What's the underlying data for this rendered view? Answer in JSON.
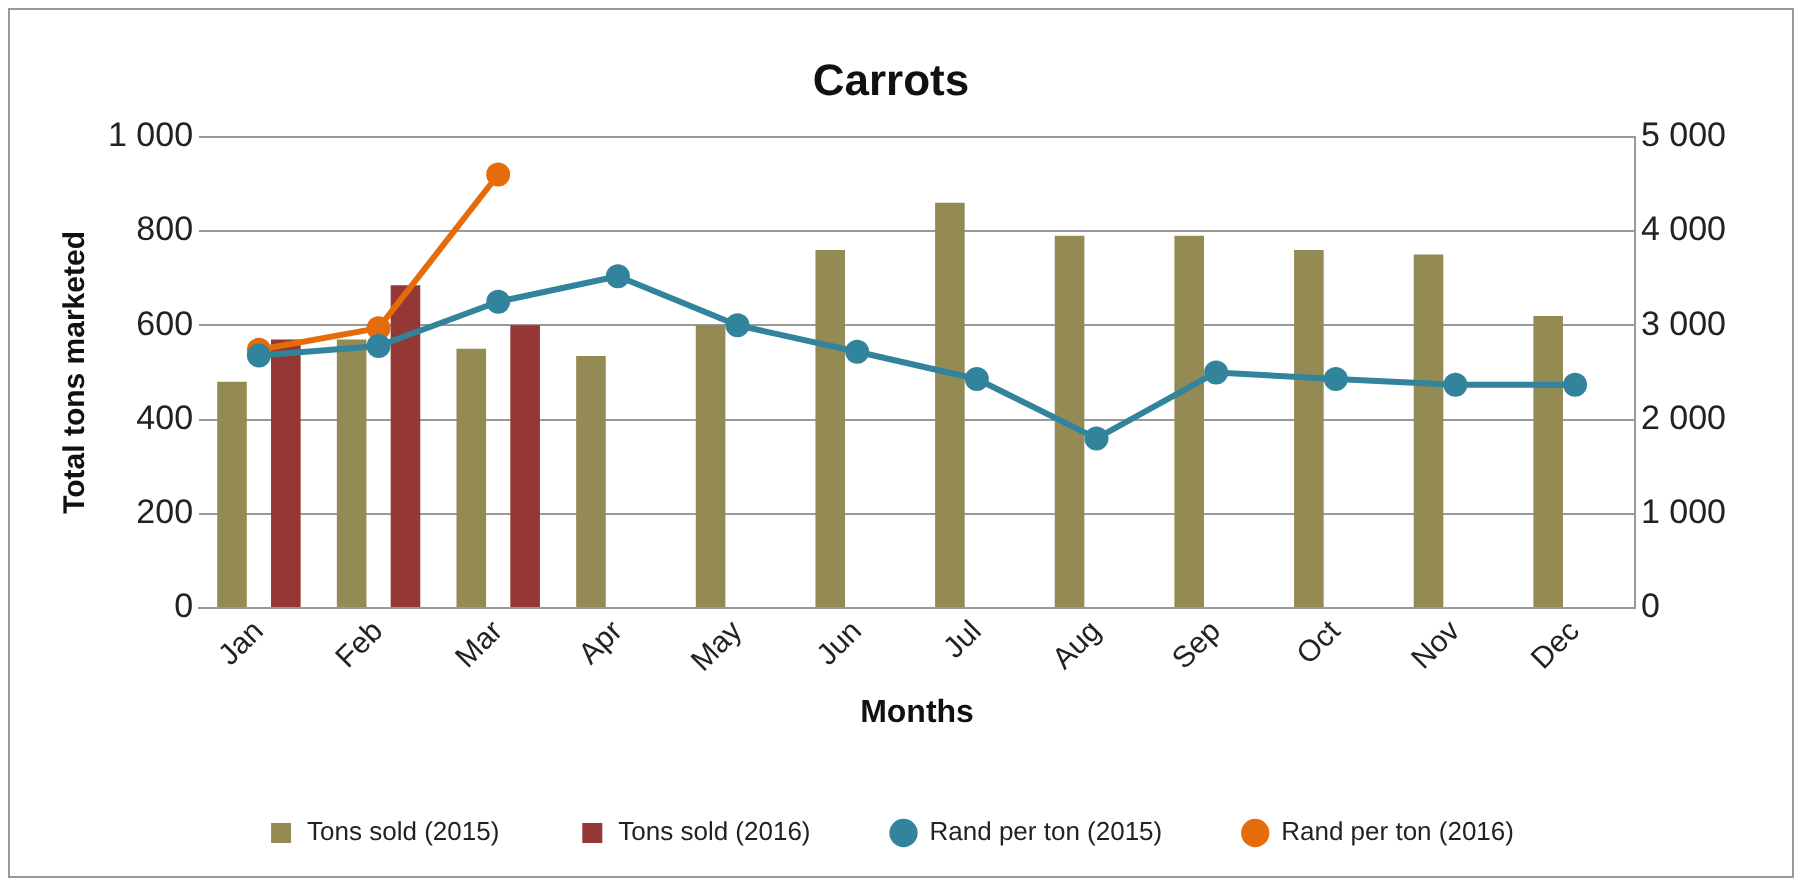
{
  "chart_data": {
    "type": "bar",
    "title": "Carrots",
    "xlabel": "Months",
    "ylabel": "Total tons marketed",
    "categories": [
      "Jan",
      "Feb",
      "Mar",
      "Apr",
      "May",
      "Jun",
      "Jul",
      "Aug",
      "Sep",
      "Oct",
      "Nov",
      "Dec"
    ],
    "series": [
      {
        "name": "Tons sold (2015)",
        "color": "#948a54",
        "values": [
          480,
          570,
          550,
          535,
          600,
          760,
          860,
          790,
          790,
          760,
          750,
          620
        ]
      },
      {
        "name": "Tons sold (2016)",
        "color": "#953735",
        "values": [
          570,
          685,
          600,
          null,
          null,
          null,
          null,
          null,
          null,
          null,
          null,
          null
        ]
      },
      {
        "name": "Rand per ton (2015)",
        "type": "line",
        "axis": "y2",
        "color": "#31849b",
        "marker": "circle",
        "values": [
          2680,
          2780,
          3250,
          3520,
          3000,
          2720,
          2430,
          1800,
          2500,
          2430,
          2370,
          2370
        ]
      },
      {
        "name": "Rand per ton (2016)",
        "type": "line",
        "axis": "y2",
        "color": "#e46c0a",
        "marker": "circle",
        "values": [
          2740,
          2970,
          4600,
          null,
          null,
          null,
          null,
          null,
          null,
          null,
          null,
          null
        ]
      }
    ],
    "ylim": [
      0,
      1000
    ],
    "yticks": [
      0,
      {
        "value": 200,
        "label": "200"
      },
      {
        "value": 400,
        "label": "400"
      },
      {
        "value": 600,
        "label": "600"
      },
      {
        "value": 800,
        "label": "800"
      },
      {
        "value": 1000,
        "label": "1 000"
      }
    ],
    "y2lim": [
      0,
      5000
    ],
    "y2ticks": [
      0,
      {
        "value": 1000,
        "label": "1 000"
      },
      {
        "value": 2000,
        "label": "2 000"
      },
      {
        "value": 3000,
        "label": "3 000"
      },
      {
        "value": 4000,
        "label": "4 000"
      },
      {
        "value": 5000,
        "label": "5 000"
      }
    ],
    "grid": "y",
    "legend": "bottom"
  }
}
